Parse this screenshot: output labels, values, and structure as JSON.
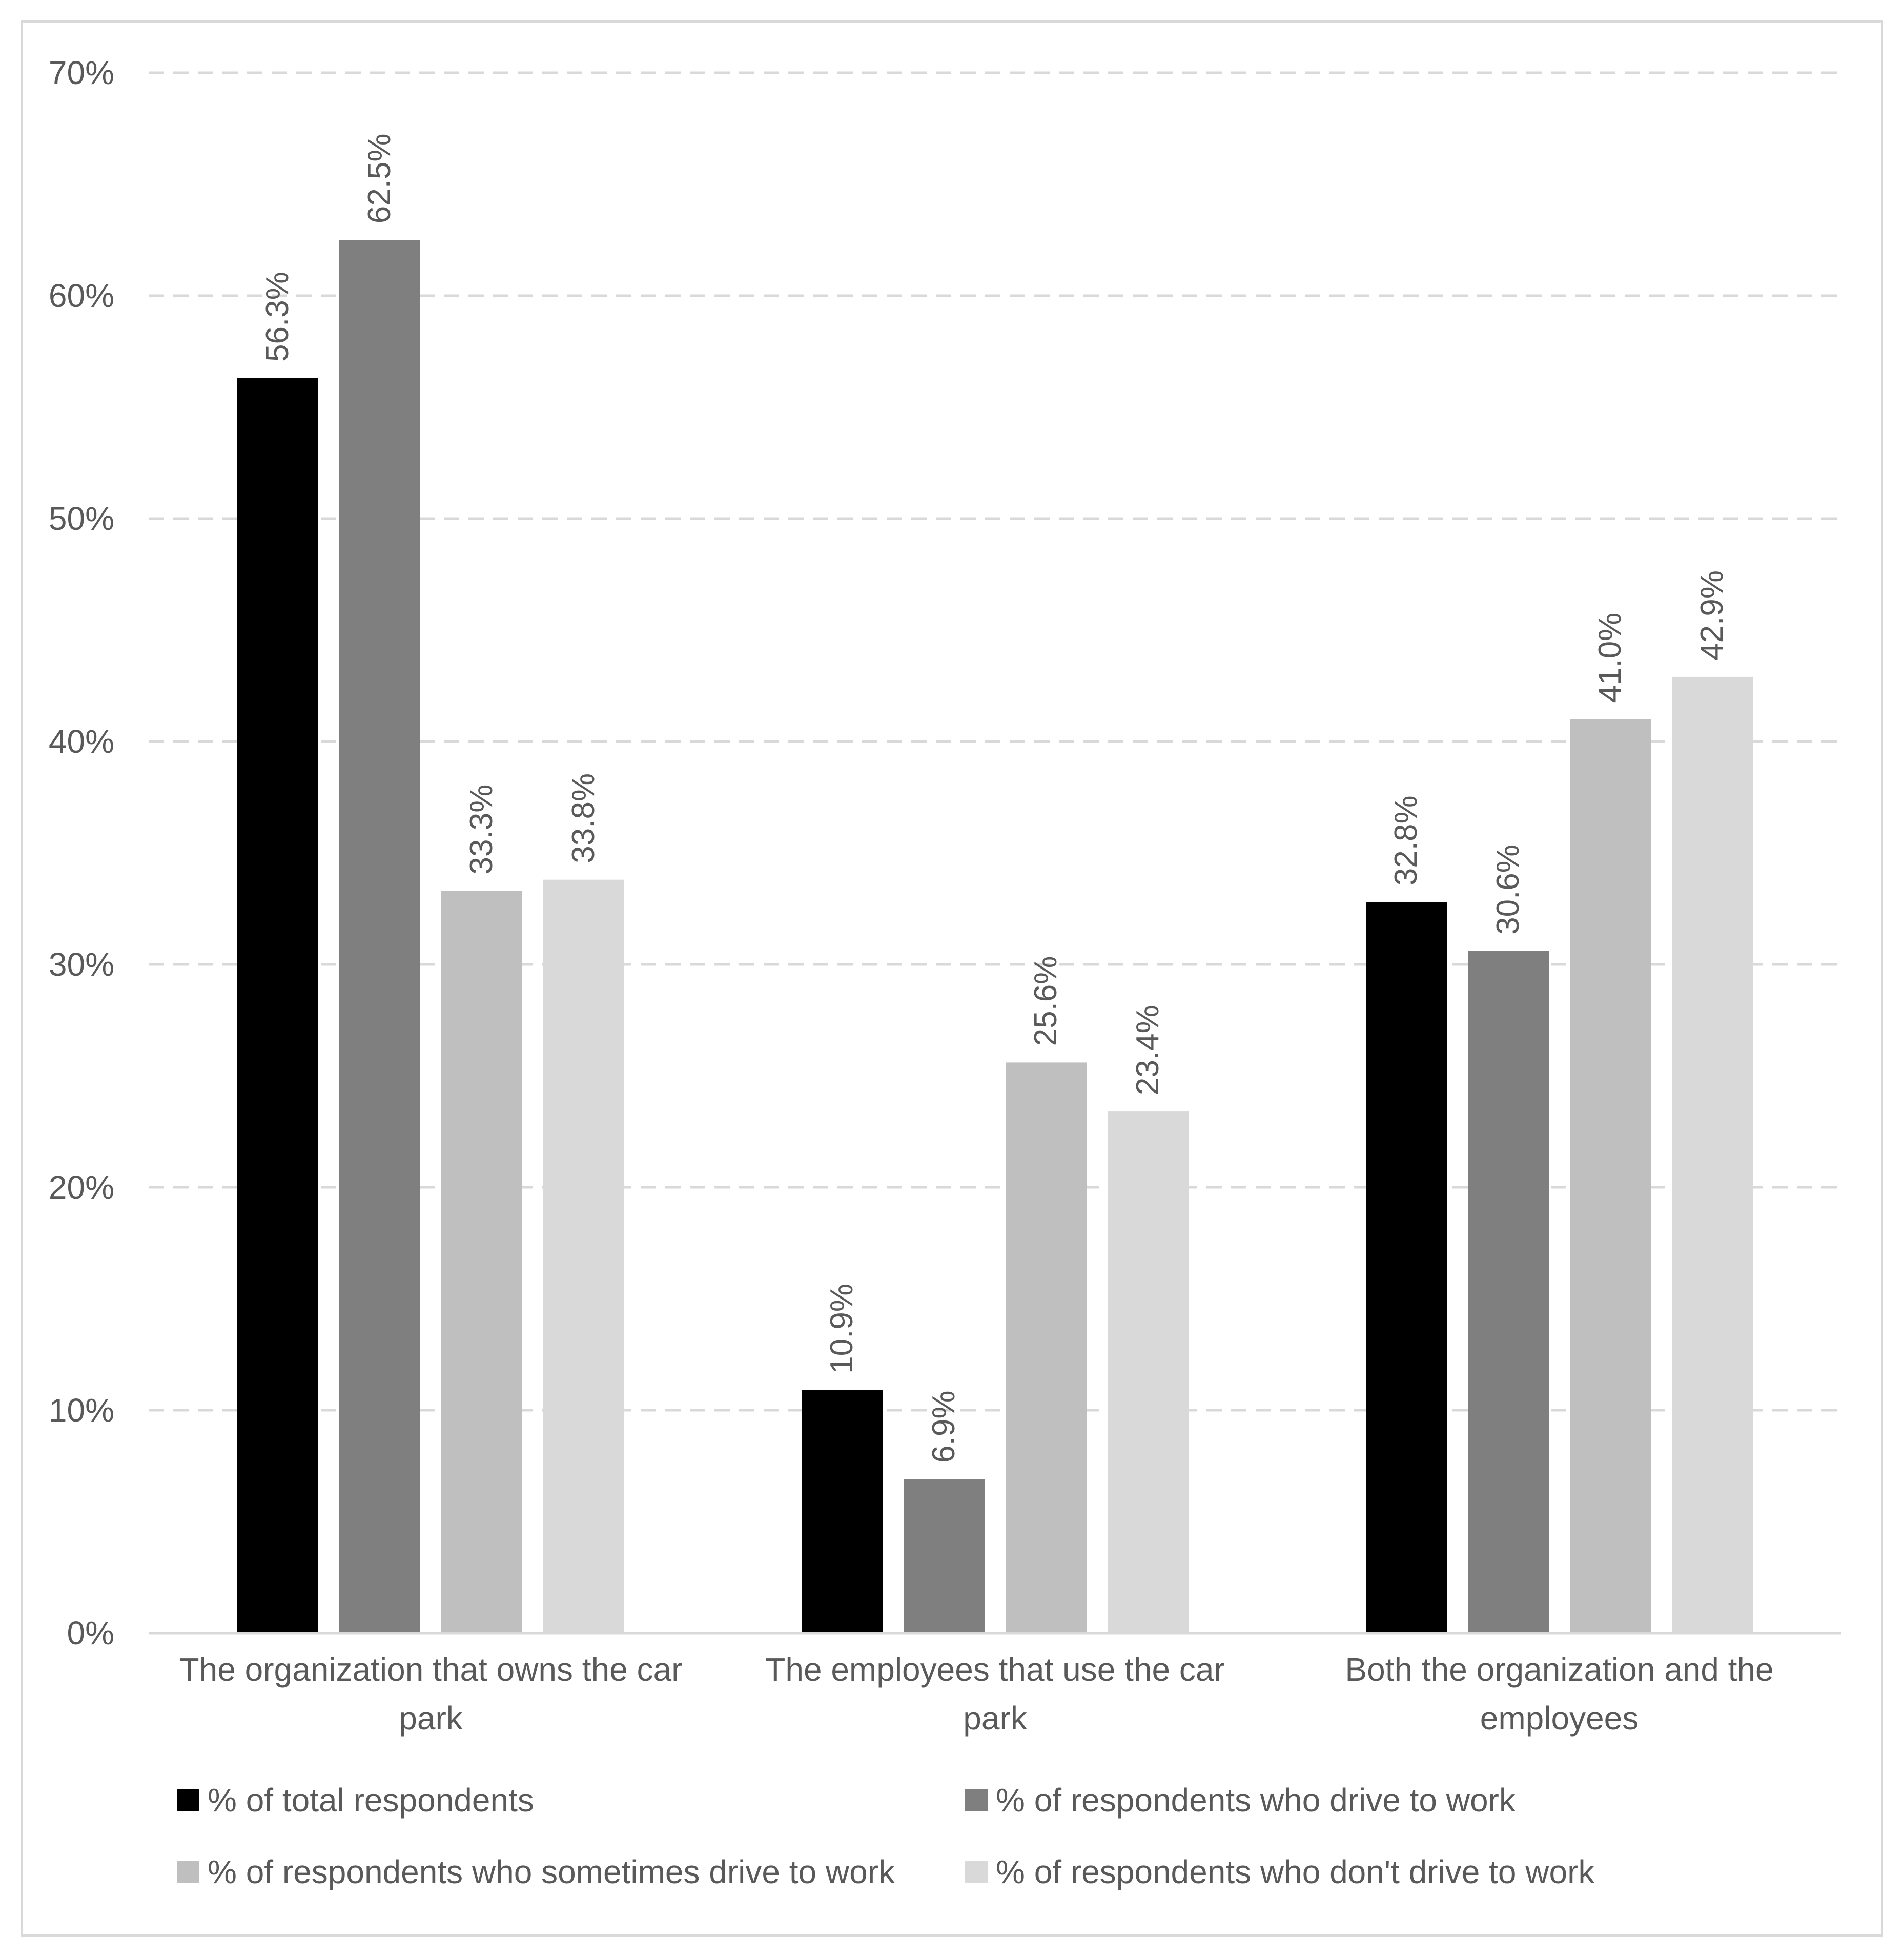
{
  "chart_data": {
    "type": "bar",
    "title": "",
    "xlabel": "",
    "ylabel": "",
    "ylim": [
      0,
      70
    ],
    "yticks": [
      0,
      10,
      20,
      30,
      40,
      50,
      60,
      70
    ],
    "ytick_labels": [
      "0%",
      "10%",
      "20%",
      "30%",
      "40%",
      "50%",
      "60%",
      "70%"
    ],
    "grid": true,
    "legend_position": "bottom",
    "categories": [
      [
        "The organization that owns the car",
        "park"
      ],
      [
        "The employees that use the car",
        "park"
      ],
      [
        "Both the organization and the",
        "employees"
      ]
    ],
    "series": [
      {
        "name": "% of total respondents",
        "color": "#000000",
        "values": [
          56.3,
          10.9,
          32.8
        ],
        "labels": [
          "56.3%",
          "10.9%",
          "32.8%"
        ]
      },
      {
        "name": "% of respondents who drive to work",
        "color": "#7f7f7f",
        "values": [
          62.5,
          6.9,
          30.6
        ],
        "labels": [
          "62.5%",
          "6.9%",
          "30.6%"
        ]
      },
      {
        "name": "% of respondents who sometimes drive to work",
        "color": "#bfbfbf",
        "values": [
          33.3,
          25.6,
          41.0
        ],
        "labels": [
          "33.3%",
          "25.6%",
          "41.0%"
        ]
      },
      {
        "name": "% of respondents who don't drive to work",
        "color": "#d9d9d9",
        "values": [
          33.8,
          23.4,
          42.9
        ],
        "labels": [
          "33.8%",
          "23.4%",
          "42.9%"
        ]
      }
    ]
  }
}
